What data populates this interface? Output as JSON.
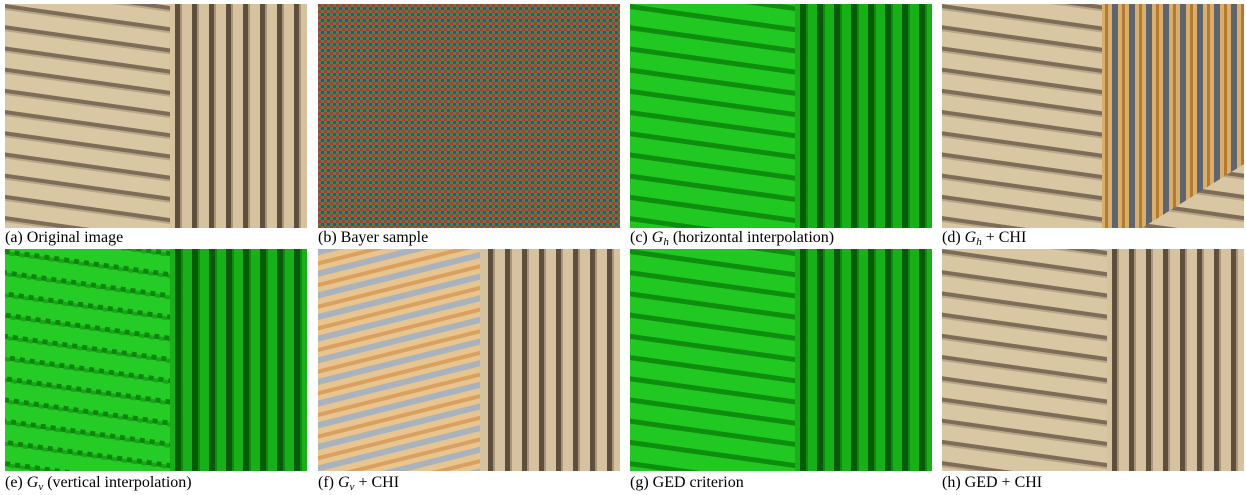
{
  "panels": [
    {
      "label": "(a)",
      "rest": "Original image"
    },
    {
      "label": "(b)",
      "rest": "Bayer sample"
    },
    {
      "label": "(c)",
      "var": "G",
      "sub": "h",
      "rest": "(horizontal interpolation)"
    },
    {
      "label": "(d)",
      "var": "G",
      "sub": "h",
      "rest": "+ CHI"
    },
    {
      "label": "(e)",
      "var": "G",
      "sub": "v",
      "rest": "(vertical interpolation)"
    },
    {
      "label": "(f)",
      "var": "G",
      "sub": "v",
      "rest": "+ CHI"
    },
    {
      "label": "(g)",
      "rest": "GED criterion"
    },
    {
      "label": "(h)",
      "rest": "GED + CHI"
    }
  ]
}
